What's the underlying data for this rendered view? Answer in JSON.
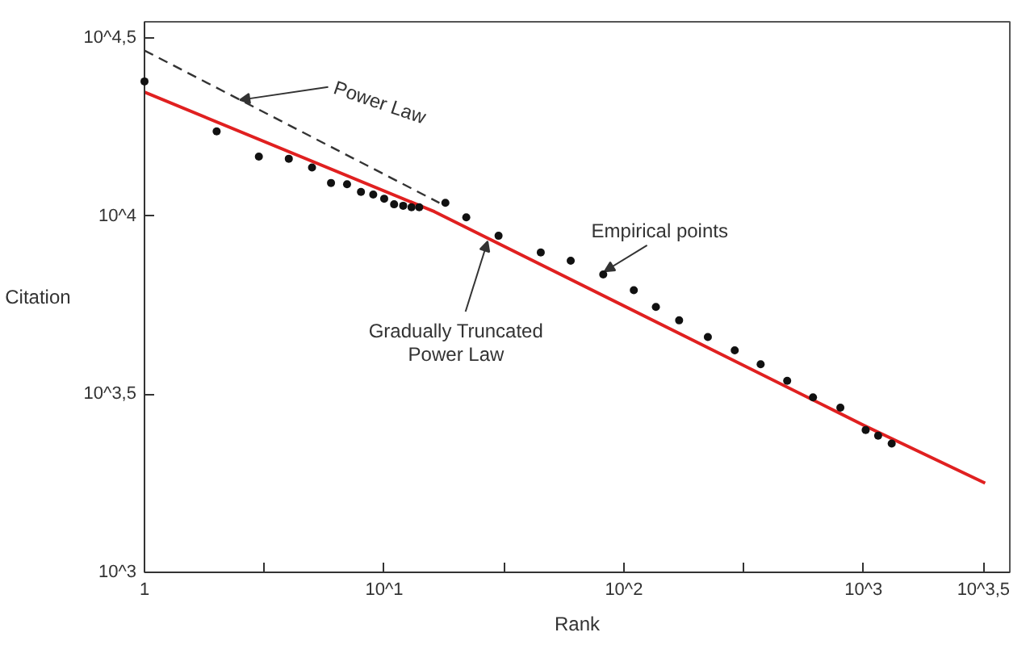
{
  "chart_data": {
    "type": "scatter",
    "xlabel": "Rank",
    "ylabel": "Citation",
    "log": "xy",
    "xlim": [
      1,
      4074
    ],
    "ylim": [
      1000,
      35150
    ],
    "xticks": [
      {
        "value": 1,
        "label": "1"
      },
      {
        "value": 3.162,
        "label": null
      },
      {
        "value": 10,
        "label": "10^1"
      },
      {
        "value": 31.62,
        "label": null
      },
      {
        "value": 100,
        "label": "10^2"
      },
      {
        "value": 316.2,
        "label": null
      },
      {
        "value": 1000,
        "label": "10^3"
      },
      {
        "value": 3162,
        "label": "10^3,5"
      }
    ],
    "yticks": [
      {
        "value": 1000,
        "label": "10^3"
      },
      {
        "value": 3162,
        "label": "10^3,5"
      },
      {
        "value": 10000,
        "label": "10^4"
      },
      {
        "value": 31623,
        "label": "10^4,5"
      }
    ],
    "series": [
      {
        "marker": "circle",
        "color": "#111111",
        "x": [
          1,
          2,
          3,
          4,
          5,
          6,
          7,
          8,
          9,
          10,
          11,
          12,
          13,
          14,
          18,
          22,
          30,
          45,
          60,
          82,
          110,
          136,
          170,
          224,
          290,
          372,
          480,
          615,
          800,
          1020,
          1150,
          1310
        ],
        "values": [
          23900,
          17300,
          14700,
          14500,
          13700,
          12400,
          12300,
          11700,
          11500,
          11200,
          10800,
          10700,
          10600,
          10600,
          10900,
          9930,
          8810,
          7910,
          7500,
          6860,
          6200,
          5560,
          5100,
          4580,
          4200,
          3840,
          3450,
          3100,
          2900,
          2510,
          2420,
          2300
        ]
      },
      {
        "type": "line",
        "line_style": "solid",
        "color": "#e02020",
        "x": [
          1,
          16.2,
          1000,
          3214
        ],
        "values": [
          22300,
          10300,
          2590,
          1780
        ]
      },
      {
        "type": "line",
        "line_style": "dashed",
        "color": "#333333",
        "x": [
          1,
          17
        ],
        "values": [
          29200,
          10900
        ]
      }
    ],
    "annotations": [
      {
        "text": "Power Law",
        "x": 2.5,
        "y": 21200
      },
      {
        "text": "Empirical points",
        "x": 83,
        "y": 7000
      },
      {
        "text": "Gradually Truncated\nPower Law",
        "x": 27,
        "y": 8500
      }
    ]
  }
}
